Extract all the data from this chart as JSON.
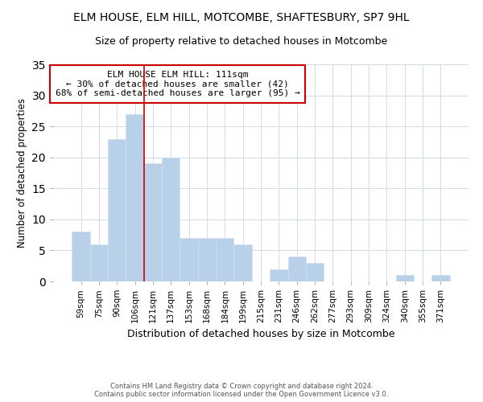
{
  "title": "ELM HOUSE, ELM HILL, MOTCOMBE, SHAFTESBURY, SP7 9HL",
  "subtitle": "Size of property relative to detached houses in Motcombe",
  "xlabel": "Distribution of detached houses by size in Motcombe",
  "ylabel": "Number of detached properties",
  "bar_color": "#b8d0e8",
  "bar_edgecolor": "#d0e0f0",
  "categories": [
    "59sqm",
    "75sqm",
    "90sqm",
    "106sqm",
    "121sqm",
    "137sqm",
    "153sqm",
    "168sqm",
    "184sqm",
    "199sqm",
    "215sqm",
    "231sqm",
    "246sqm",
    "262sqm",
    "277sqm",
    "293sqm",
    "309sqm",
    "324sqm",
    "340sqm",
    "355sqm",
    "371sqm"
  ],
  "values": [
    8,
    6,
    23,
    27,
    19,
    20,
    7,
    7,
    7,
    6,
    0,
    2,
    4,
    3,
    0,
    0,
    0,
    0,
    1,
    0,
    1
  ],
  "ylim": [
    0,
    35
  ],
  "yticks": [
    0,
    5,
    10,
    15,
    20,
    25,
    30,
    35
  ],
  "marker_index": 3,
  "marker_color": "#cc0000",
  "annotation_title": "ELM HOUSE ELM HILL: 111sqm",
  "annotation_line1": "← 30% of detached houses are smaller (42)",
  "annotation_line2": "68% of semi-detached houses are larger (95) →",
  "annotation_box_edgecolor": "#cc0000",
  "footer1": "Contains HM Land Registry data © Crown copyright and database right 2024.",
  "footer2": "Contains public sector information licensed under the Open Government Licence v3.0.",
  "background_color": "#ffffff",
  "grid_color": "#d0dce8"
}
